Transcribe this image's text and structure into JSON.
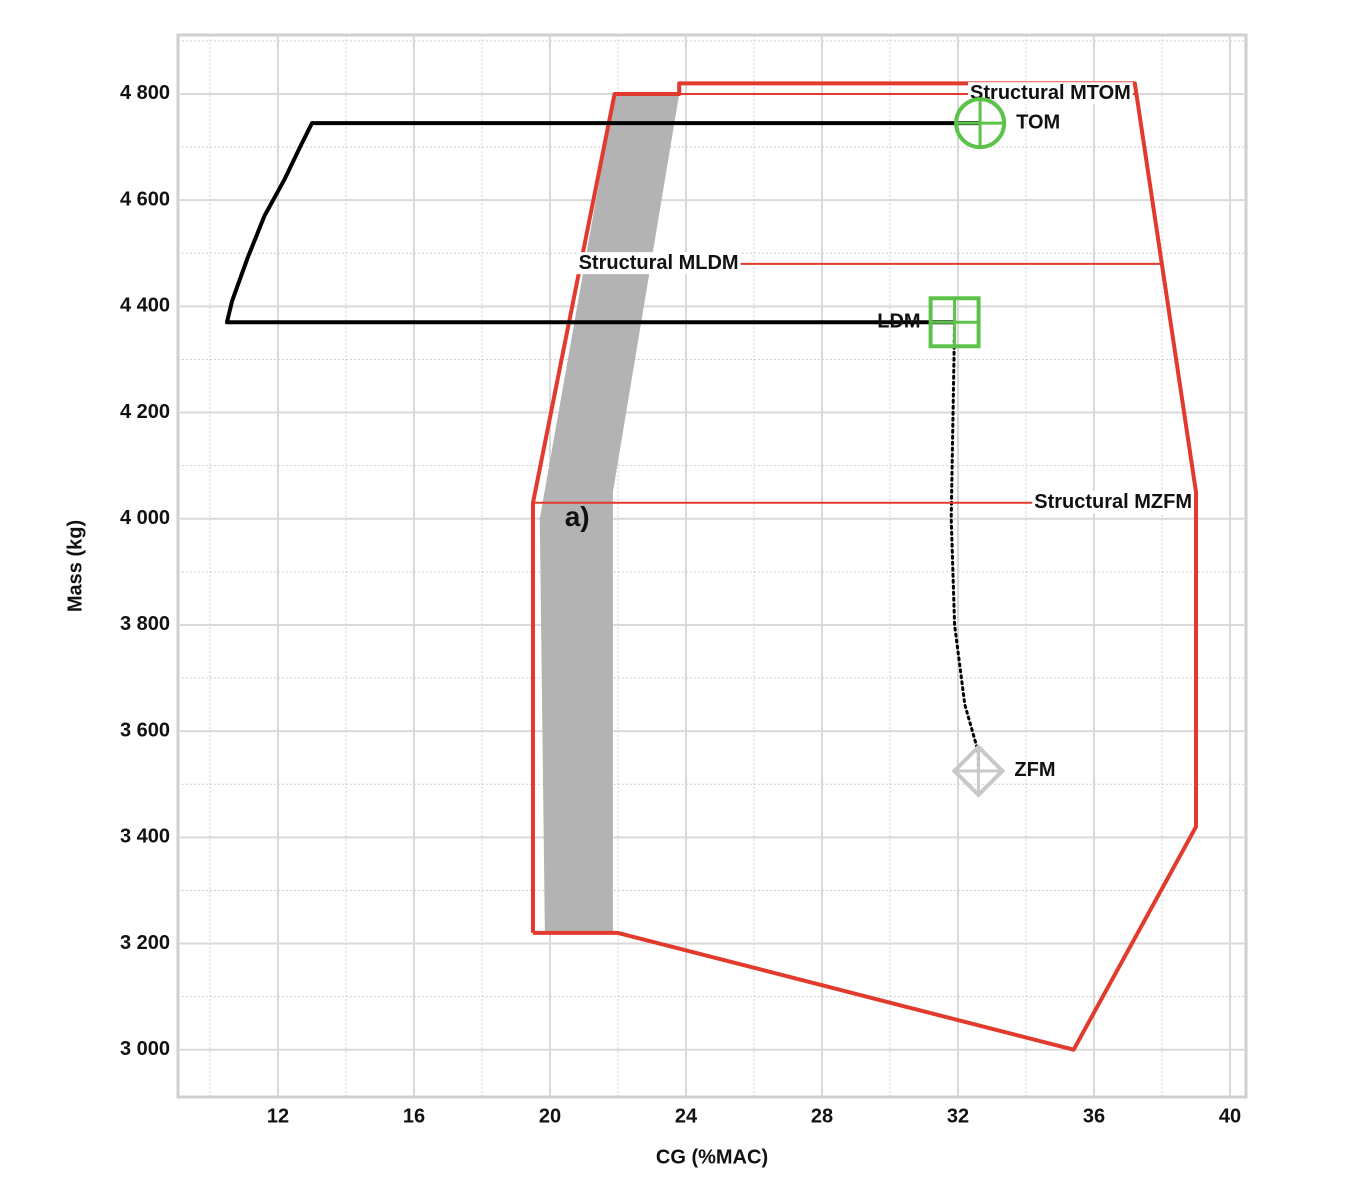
{
  "chart_data": {
    "type": "line",
    "x_label": "CG (%MAC)",
    "y_label": "Mass (kg)",
    "xlim": [
      9.06,
      40.47
    ],
    "ylim": [
      2911,
      4911
    ],
    "xticks": [
      12,
      16,
      20,
      24,
      28,
      32,
      36,
      40
    ],
    "yticks": [
      {
        "value": 3000,
        "label": "3 000"
      },
      {
        "value": 3200,
        "label": "3 200"
      },
      {
        "value": 3400,
        "label": "3 400"
      },
      {
        "value": 3600,
        "label": "3 600"
      },
      {
        "value": 3800,
        "label": "3 800"
      },
      {
        "value": 4000,
        "label": "4 000"
      },
      {
        "value": 4200,
        "label": "4 200"
      },
      {
        "value": 4400,
        "label": "4 400"
      },
      {
        "value": 4600,
        "label": "4 600"
      },
      {
        "value": 4800,
        "label": "4 800"
      }
    ],
    "minor_xticks": [
      10,
      14,
      18,
      22,
      26,
      30,
      34,
      38
    ],
    "minor_yticks": [
      3100,
      3300,
      3500,
      3700,
      3900,
      4100,
      4300,
      4500,
      4700,
      4900
    ],
    "grid": true,
    "series": [
      {
        "type": "area",
        "color": "#b3b3b3",
        "x": [
          19.85,
          21.85,
          21.85,
          23.8,
          21.9,
          19.7,
          19.85
        ],
        "values": [
          3220,
          3220,
          4050,
          4800,
          4800,
          4000,
          3220
        ]
      },
      {
        "type": "line",
        "color": "#e23b2e",
        "x": [
          19.5,
          22,
          35.4,
          39,
          39,
          37.2,
          23.8,
          23.8,
          21.9,
          19.5,
          19.5
        ],
        "values": [
          3220,
          3220,
          3000,
          3420,
          4050,
          4820,
          4820,
          4800,
          4800,
          4030,
          3220
        ]
      },
      {
        "type": "line",
        "color": "#000000",
        "x": [
          32.65,
          13.0,
          12.65,
          12.2,
          11.6,
          11.1,
          10.65,
          10.5,
          31.9
        ],
        "values": [
          4745,
          4745,
          4700,
          4640,
          4570,
          4490,
          4410,
          4370,
          4370
        ]
      },
      {
        "type": "line",
        "color": "#000000",
        "dash": "dotted",
        "x": [
          31.9,
          31.8,
          31.9,
          32.2,
          32.6,
          32.6
        ],
        "values": [
          4370,
          4000,
          3800,
          3650,
          3560,
          3525
        ]
      }
    ],
    "limits": [
      {
        "label": "Structural MTOM",
        "value": 4800,
        "x": [
          23.8,
          37.2
        ],
        "label_side": "right",
        "color": "#e23b2e"
      },
      {
        "label": "Structural MLDM",
        "value": 4480,
        "x": [
          20.9,
          38.0
        ],
        "label_side": "left",
        "color": "#e23b2e"
      },
      {
        "label": "Structural MZFM",
        "value": 4030,
        "x": [
          19.5,
          39.0
        ],
        "label_side": "right",
        "color": "#e23b2e"
      }
    ],
    "points": [
      {
        "label": "TOM",
        "x": 32.65,
        "y": 4745,
        "marker": "circle",
        "color": "#5cc24a",
        "label_side": "right",
        "label_color": "#999999"
      },
      {
        "label": "LDM",
        "x": 31.9,
        "y": 4370,
        "marker": "square",
        "color": "#5cc24a",
        "label_side": "left",
        "label_color": "#999999"
      },
      {
        "label": "ZFM",
        "x": 32.6,
        "y": 3525,
        "marker": "diamond",
        "color": "#c8c8c8",
        "label_side": "right",
        "label_color": "#999999"
      }
    ],
    "annotations": [
      {
        "text": "a)",
        "x": 20.8,
        "y": 4000
      }
    ]
  }
}
